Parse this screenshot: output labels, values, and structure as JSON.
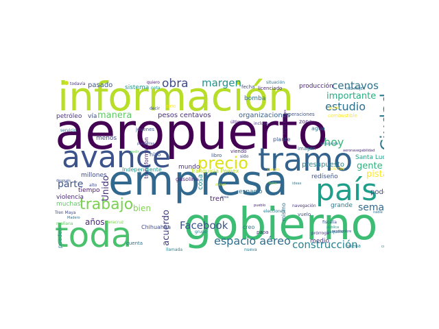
{
  "cloud": {
    "palette": {
      "dark_purple": "#440154",
      "purple": "#472c7a",
      "indigo": "#3b518b",
      "blue": "#2c718e",
      "teal": "#21908d",
      "green": "#27ad81",
      "light_green": "#5cc863",
      "lime": "#aadc32",
      "yellow": "#fde725"
    },
    "words": [
      {
        "text": "aeropuerto",
        "color": "#440154"
      },
      {
        "text": "empresa",
        "color": "#31688e"
      },
      {
        "text": "gobierno",
        "color": "#3dbc74"
      },
      {
        "text": "información",
        "color": "#b8de29"
      },
      {
        "text": "toda",
        "color": "#4ac16d"
      },
      {
        "text": "avance",
        "color": "#3b528b"
      },
      {
        "text": "tramo",
        "color": "#33638d"
      },
      {
        "text": "país",
        "color": "#1f9e89"
      },
      {
        "text": "precio",
        "color": "#dde318"
      },
      {
        "text": "trabajo",
        "color": "#7ad151"
      },
      {
        "text": "Ciudad",
        "color": "#2a788e"
      },
      {
        "text": "obra",
        "color": "#3e4a89"
      },
      {
        "text": "margen",
        "color": "#21918c"
      },
      {
        "text": "centavos",
        "color": "#2c728e"
      },
      {
        "text": "importante",
        "color": "#27ad81"
      },
      {
        "text": "estudio",
        "color": "#2d708e"
      },
      {
        "text": "hoy",
        "color": "#35b779"
      },
      {
        "text": "manera",
        "color": "#5ec962"
      },
      {
        "text": "pesos centavos",
        "color": "#472d7b"
      },
      {
        "text": "organizaciones",
        "color": "#35608d"
      },
      {
        "text": "espacio aéreo",
        "color": "#2e6e8e"
      },
      {
        "text": "construcción",
        "color": "#26828e"
      },
      {
        "text": "Facebook",
        "color": "#3a548c"
      },
      {
        "text": "acuerdo",
        "color": "#423f85"
      },
      {
        "text": "semana",
        "color": "#31688e"
      },
      {
        "text": "gente",
        "color": "#2db27d"
      },
      {
        "text": "pista",
        "color": "#fde725"
      },
      {
        "text": "años",
        "color": "#482878"
      },
      {
        "text": "bien",
        "color": "#7fd34e"
      },
      {
        "text": "parte",
        "color": "#3b528b"
      },
      {
        "text": "Unido",
        "color": "#46337e"
      },
      {
        "text": "cosa",
        "color": "#24868e"
      },
      {
        "text": "tren",
        "color": "#481c6e"
      },
      {
        "text": "Tranquicia Pemex",
        "color": "#b5de2b"
      },
      {
        "text": "presupuesto",
        "color": "#25858e"
      },
      {
        "text": "Santa Lucía",
        "color": "#20a386"
      },
      {
        "text": "redíseño",
        "color": "#3b528b"
      },
      {
        "text": "poder",
        "color": "#404688"
      },
      {
        "text": "grande",
        "color": "#2a788e"
      },
      {
        "text": "medio",
        "color": "#443983"
      },
      {
        "text": "espacio",
        "color": "#2d708e"
      },
      {
        "text": "mundo",
        "color": "#46327e"
      },
      {
        "text": "millones",
        "color": "#3e4989"
      },
      {
        "text": "tiempo",
        "color": "#481a6c"
      },
      {
        "text": "violencia",
        "color": "#472a7a"
      },
      {
        "text": "muchas",
        "color": "#5ec962"
      },
      {
        "text": "pasado",
        "color": "#38588c"
      },
      {
        "text": "sistema",
        "color": "#1f988b"
      },
      {
        "text": "producción",
        "color": "#482576"
      },
      {
        "text": "bomba",
        "color": "#2c728e"
      },
      {
        "text": "petróleo",
        "color": "#46337e"
      },
      {
        "text": "menos",
        "color": "#404688"
      },
      {
        "text": "vía",
        "color": "#3e4a89"
      },
      {
        "text": "hizo",
        "color": "#3b528b"
      },
      {
        "text": "agua",
        "color": "#2a788e"
      },
      {
        "text": "Chihuahua",
        "color": "#3e4989"
      },
      {
        "text": "gasolina",
        "color": "#482475"
      },
      {
        "text": "pueden",
        "color": "#24868e"
      },
      {
        "text": "creo",
        "color": "#2a788e"
      },
      {
        "text": "papa",
        "color": "#482878"
      },
      {
        "text": "plante",
        "color": "#3b528b"
      },
      {
        "text": "zona",
        "color": "#482576"
      },
      {
        "text": "mismo",
        "color": "#2d708e"
      },
      {
        "text": "vuelo",
        "color": "#3b528b"
      },
      {
        "text": "buena",
        "color": "#26828e"
      },
      {
        "text": "transformación",
        "color": "#482878"
      },
      {
        "text": "jóvenes",
        "color": "#3a548c"
      },
      {
        "text": "sino",
        "color": "#fde725"
      },
      {
        "text": "quiero",
        "color": "#481a6c"
      },
      {
        "text": "todavía",
        "color": "#46327e"
      },
      {
        "text": "fecha",
        "color": "#3e4a89"
      },
      {
        "text": "licenciado",
        "color": "#482878"
      },
      {
        "text": "situación",
        "color": "#2c728e"
      },
      {
        "text": "combustible",
        "color": "#fde725"
      },
      {
        "text": "operaciones",
        "color": "#3b528b"
      },
      {
        "text": "imagen",
        "color": "#2a788e"
      },
      {
        "text": "Tren Maya",
        "color": "#3e4a89"
      },
      {
        "text": "mañana",
        "color": "#5ec962"
      },
      {
        "text": "Veracruz",
        "color": "#7ad151"
      },
      {
        "text": "Independiente",
        "color": "#1f988b"
      },
      {
        "text": "libro",
        "color": "#3b528b"
      },
      {
        "text": "viendo",
        "color": "#482576"
      },
      {
        "text": "sido",
        "color": "#3e4a89"
      },
      {
        "text": "elecciones",
        "color": "#2a788e"
      },
      {
        "text": "navegación",
        "color": "#46337e"
      },
      {
        "text": "paquete",
        "color": "#2a788e"
      },
      {
        "text": "fiscalía",
        "color": "#3b528b"
      },
      {
        "text": "pública",
        "color": "#1f988b"
      },
      {
        "text": "cuenta",
        "color": "#2c728e"
      },
      {
        "text": "llamada",
        "color": "#26828e"
      },
      {
        "text": "prórroga",
        "color": "#46337e"
      },
      {
        "text": "nueva",
        "color": "#2a788e"
      },
      {
        "text": "ciertos",
        "color": "#fde725"
      },
      {
        "text": "aeronavegabilidad",
        "color": "#482878"
      },
      {
        "text": "servicio",
        "color": "#2c728e"
      },
      {
        "text": "alto",
        "color": "#3e4a89"
      },
      {
        "text": "después",
        "color": "#3b528b"
      },
      {
        "text": "Madero",
        "color": "#2d708e"
      },
      {
        "text": "grupo",
        "color": "#2a788e"
      },
      {
        "text": "último",
        "color": "#482475"
      },
      {
        "text": "decir",
        "color": "#3b528b"
      },
      {
        "text": "pedir",
        "color": "#5ec962"
      },
      {
        "text": "cuatro",
        "color": "#2a788e"
      },
      {
        "text": "VOZ MUJER",
        "color": "#2c728e"
      },
      {
        "text": "incluso",
        "color": "#46337e"
      },
      {
        "text": "septiembre",
        "color": "#3b528b"
      },
      {
        "text": "gran",
        "color": "#482878"
      },
      {
        "text": "nadie",
        "color": "#2d708e"
      },
      {
        "text": "Felipe Ángeles",
        "color": "#482878"
      },
      {
        "text": "nota",
        "color": "#1f988b"
      },
      {
        "text": "preguntas",
        "color": "#3e4a89"
      },
      {
        "text": "punto",
        "color": "#fde725"
      },
      {
        "text": "área",
        "color": "#3b528b"
      },
      {
        "text": "falta",
        "color": "#7ad151"
      },
      {
        "text": "pueblo",
        "color": "#482878"
      },
      {
        "text": "ideas",
        "color": "#2a788e"
      },
      {
        "text": "diésel",
        "color": "#b5de2b"
      },
      {
        "text": "propuesta",
        "color": "#2c728e"
      },
      {
        "text": "cambio",
        "color": "#fde725"
      }
    ]
  }
}
